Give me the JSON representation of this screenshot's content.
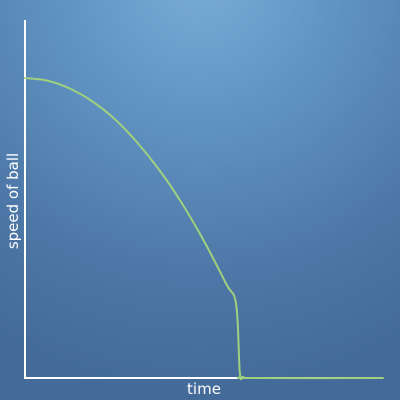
{
  "chart_data": {
    "type": "line",
    "title": "",
    "xlabel": "time",
    "ylabel": "speed of ball",
    "x_ticks": [],
    "y_ticks": [],
    "grid": false,
    "legend": "none",
    "xlim": [
      0,
      1
    ],
    "ylim": [
      0,
      1
    ],
    "series": [
      {
        "x": [
          0,
          0.0625,
          0.125,
          0.1875,
          0.25,
          0.3125,
          0.375,
          0.4375,
          0.5,
          0.5625,
          0.59,
          0.6,
          0.61,
          0.63,
          1.0
        ],
        "values": [
          0.8,
          0.793,
          0.772,
          0.738,
          0.691,
          0.629,
          0.555,
          0.467,
          0.365,
          0.25,
          0.195,
          0.015,
          0.003,
          0.0,
          0.0
        ]
      }
    ],
    "colors": {
      "axis": "#ffffff",
      "line": "#9ed07f"
    }
  }
}
